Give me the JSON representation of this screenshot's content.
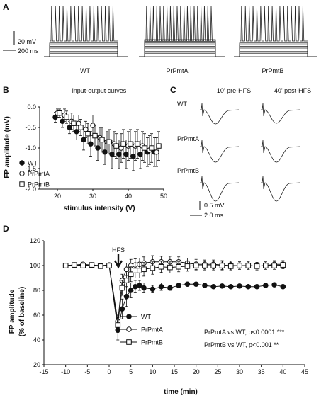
{
  "panels": {
    "A": {
      "letter": "A",
      "scalebar_v": "20 mV",
      "scalebar_h": "200 ms",
      "labels": [
        "WT",
        "PrPmtA",
        "PrPmtB"
      ]
    },
    "B": {
      "letter": "B",
      "title": "input-output curves",
      "xlabel": "stimulus intensity (V)",
      "ylabel": "FP amplitude (mV)"
    },
    "C": {
      "letter": "C",
      "col_labels": [
        "10' pre-HFS",
        "40' post-HFS"
      ],
      "row_labels": [
        "WT",
        "PrPmtA",
        "PrPmtB"
      ],
      "scalebar_v": "0.5 mV",
      "scalebar_h": "2.0 ms"
    },
    "D": {
      "letter": "D",
      "annotation": "HFS",
      "xlabel": "time (min)",
      "ylabel_line1": "FP amplitude",
      "ylabel_line2": "(% of baseline)",
      "stats": [
        "PrPmtA vs WT, p<0.0001 ***",
        "PrPmtB vs WT, p<0.001 **"
      ]
    }
  },
  "chart_data": [
    {
      "type": "scatter",
      "panel": "B",
      "title": "input-output curves",
      "xlabel": "stimulus intensity (V)",
      "ylabel": "FP amplitude (mV)",
      "xlim": [
        15,
        50
      ],
      "ylim": [
        -2.0,
        0.0
      ],
      "xticks": [
        20,
        30,
        40,
        50
      ],
      "yticks": [
        0.0,
        -0.5,
        -1.0,
        -1.5,
        -2.0
      ],
      "xtick_labels": [
        "20",
        "30",
        "40",
        "50"
      ],
      "ytick_labels": [
        "0.0",
        "-0.5",
        "-1.0",
        "-1.5",
        "-2.0"
      ],
      "legend_position": "lower-left",
      "series": [
        {
          "name": "WT",
          "marker": "filled-circle",
          "x": [
            20,
            22,
            24,
            26,
            28,
            30,
            32,
            34,
            36,
            38,
            40,
            42,
            44,
            46,
            48
          ],
          "y": [
            -0.25,
            -0.35,
            -0.5,
            -0.6,
            -0.8,
            -0.9,
            -1.0,
            -1.1,
            -1.15,
            -1.15,
            -1.15,
            -1.2,
            -1.15,
            -1.1,
            -1.1
          ],
          "err": [
            0.12,
            0.15,
            0.15,
            0.2,
            0.25,
            0.3,
            0.3,
            0.3,
            0.35,
            0.35,
            0.35,
            0.35,
            0.35,
            0.35,
            0.35
          ]
        },
        {
          "name": "PrPmtA",
          "marker": "open-circle",
          "x": [
            20,
            22,
            24,
            26,
            28,
            30,
            32,
            34,
            36,
            38,
            40,
            42,
            44,
            46,
            48
          ],
          "y": [
            -0.15,
            -0.2,
            -0.35,
            -0.4,
            -0.55,
            -0.45,
            -0.75,
            -0.85,
            -0.9,
            -1.0,
            -0.95,
            -0.95,
            -0.95,
            -1.05,
            -1.1
          ],
          "err": [
            0.1,
            0.15,
            0.2,
            0.2,
            0.2,
            0.25,
            0.25,
            0.25,
            0.3,
            0.35,
            0.35,
            0.35,
            0.35,
            0.35,
            0.35
          ]
        },
        {
          "name": "PrPmtB",
          "marker": "open-square",
          "x": [
            20,
            22,
            24,
            26,
            28,
            30,
            32,
            34,
            36,
            38,
            40,
            42,
            44,
            46,
            48
          ],
          "y": [
            -0.15,
            -0.25,
            -0.4,
            -0.5,
            -0.65,
            -0.7,
            -0.8,
            -0.85,
            -0.95,
            -0.9,
            -0.9,
            -0.9,
            -1.0,
            -1.0,
            -0.95
          ],
          "err": [
            0.1,
            0.15,
            0.2,
            0.2,
            0.25,
            0.25,
            0.3,
            0.3,
            0.3,
            0.35,
            0.35,
            0.35,
            0.35,
            0.35,
            0.35
          ]
        }
      ]
    },
    {
      "type": "line",
      "panel": "D",
      "xlabel": "time (min)",
      "ylabel": "FP amplitude (% of baseline)",
      "xlim": [
        -15,
        45
      ],
      "ylim": [
        20,
        120
      ],
      "xticks": [
        -15,
        -10,
        -5,
        0,
        5,
        10,
        15,
        20,
        25,
        30,
        35,
        40,
        45
      ],
      "yticks": [
        20,
        40,
        60,
        80,
        100,
        120
      ],
      "xtick_labels": [
        "-15",
        "-10",
        "-5",
        "0",
        "5",
        "10",
        "15",
        "20",
        "25",
        "30",
        "35",
        "40",
        "45"
      ],
      "ytick_labels": [
        "20",
        "40",
        "60",
        "80",
        "100",
        "120"
      ],
      "legend_position": "bottom-left",
      "series": [
        {
          "name": "WT",
          "marker": "filled-circle",
          "x": [
            -10,
            -8,
            -6,
            -4,
            -2,
            0,
            2,
            3,
            4,
            5,
            6,
            7,
            8,
            10,
            12,
            14,
            16,
            18,
            20,
            22,
            24,
            26,
            28,
            30,
            32,
            34,
            36,
            38,
            40
          ],
          "y": [
            100,
            100.5,
            100.5,
            100,
            99.5,
            100,
            48,
            65,
            75,
            80,
            83,
            84,
            82,
            81,
            83,
            82,
            84,
            85,
            85,
            84,
            83,
            83.5,
            83,
            83.5,
            83,
            83,
            84,
            84.5,
            83
          ],
          "err": [
            1,
            1,
            1,
            1,
            1,
            1,
            8,
            8,
            8,
            6,
            5,
            4,
            4,
            3,
            3,
            2,
            2,
            1.5,
            1.5,
            1.5,
            1.5,
            1.5,
            1.5,
            1.5,
            1.5,
            1.5,
            1.5,
            1.5,
            1.5
          ]
        },
        {
          "name": "PrPmtA",
          "marker": "open-circle",
          "x": [
            -10,
            -8,
            -6,
            -4,
            -2,
            0,
            2,
            3,
            4,
            5,
            6,
            7,
            8,
            10,
            12,
            14,
            16,
            18,
            20,
            22,
            24,
            26,
            28,
            30,
            32,
            34,
            36,
            38,
            40
          ],
          "y": [
            100,
            100.5,
            101,
            100.5,
            100,
            100.5,
            55,
            88,
            97,
            100,
            100.5,
            101,
            102,
            103,
            103,
            103,
            103,
            102,
            101,
            101,
            101,
            100.5,
            100,
            100,
            100,
            99.5,
            100,
            101,
            101
          ],
          "err": [
            1,
            1,
            1,
            1,
            1,
            1,
            5,
            5,
            5,
            5,
            5,
            5,
            5,
            5,
            4.5,
            4.5,
            4,
            4,
            4,
            3.5,
            3.5,
            3.5,
            3.5,
            3,
            3,
            3,
            3,
            3,
            3
          ]
        },
        {
          "name": "PrPmtB",
          "marker": "open-square",
          "x": [
            -10,
            -8,
            -6,
            -4,
            -2,
            0,
            2,
            3,
            4,
            5,
            6,
            7,
            8,
            10,
            12,
            14,
            16,
            18,
            20,
            22,
            24,
            26,
            28,
            30,
            32,
            34,
            36,
            38,
            40
          ],
          "y": [
            100,
            100.5,
            100,
            100.5,
            99.5,
            100,
            52,
            82,
            88,
            93,
            96,
            96,
            97,
            98,
            99,
            98.5,
            99,
            99.5,
            100,
            100,
            100,
            100,
            99.5,
            100,
            100,
            99.5,
            100,
            100,
            100.5
          ],
          "err": [
            1,
            1,
            1,
            1,
            1,
            1,
            6,
            6,
            6,
            6,
            6,
            6,
            5.5,
            5,
            4.5,
            4.5,
            4,
            4,
            3.5,
            3.5,
            3.5,
            3.5,
            3,
            3,
            3,
            3,
            3,
            3,
            3
          ]
        }
      ]
    }
  ]
}
